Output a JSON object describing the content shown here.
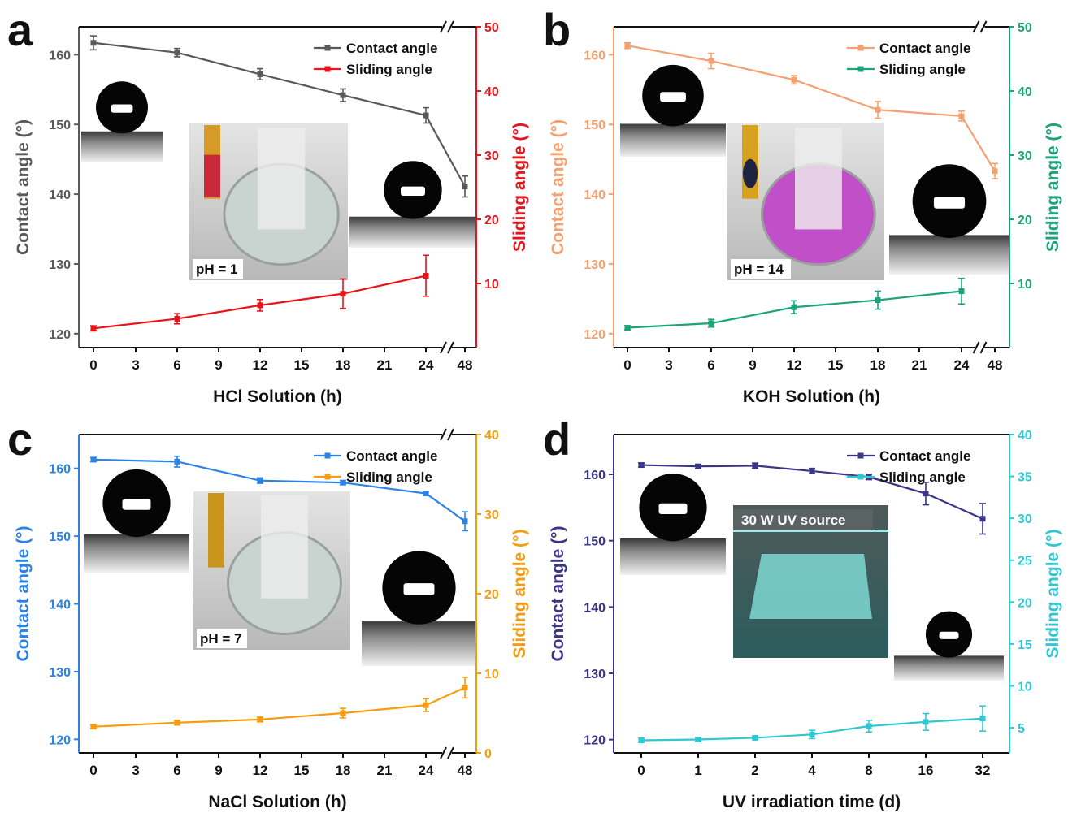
{
  "chart_data": [
    {
      "type": "line",
      "panel_label": "a",
      "xlabel": "HCl Solution (h)",
      "ylabel": "Contact angle (°)",
      "y2label": "Sliding angle (°)",
      "x_tick_labels": [
        "0",
        "3",
        "6",
        "9",
        "12",
        "15",
        "18",
        "21",
        "24",
        "48"
      ],
      "x_break": true,
      "ylim": [
        118,
        164
      ],
      "y_ticks": [
        120,
        130,
        140,
        150,
        160
      ],
      "y2lim": [
        0,
        50
      ],
      "y2_ticks": [
        10,
        20,
        30,
        40,
        50
      ],
      "legend_position": "top-right",
      "inset_label": "pH = 1",
      "series": [
        {
          "name": "Contact angle",
          "axis": "left",
          "color": "#595959",
          "x": [
            "0",
            "6",
            "12",
            "18",
            "24",
            "48"
          ],
          "values": [
            161.7,
            160.3,
            157.2,
            154.2,
            151.3,
            141.1
          ],
          "errors": [
            1.0,
            0.6,
            0.8,
            0.9,
            1.1,
            1.5
          ]
        },
        {
          "name": "Sliding angle",
          "axis": "right",
          "color": "#e8141b",
          "x": [
            "0",
            "6",
            "12",
            "18",
            "24"
          ],
          "values": [
            3.0,
            4.5,
            6.6,
            8.4,
            11.2
          ],
          "errors": [
            0.4,
            0.8,
            0.9,
            2.3,
            3.2
          ]
        }
      ]
    },
    {
      "type": "line",
      "panel_label": "b",
      "xlabel": "KOH Solution (h)",
      "ylabel": "Contact angle (°)",
      "y2label": "Sliding angle (°)",
      "x_tick_labels": [
        "0",
        "3",
        "6",
        "9",
        "12",
        "15",
        "18",
        "21",
        "24",
        "48"
      ],
      "x_break": true,
      "ylim": [
        118,
        164
      ],
      "y_ticks": [
        120,
        130,
        140,
        150,
        160
      ],
      "y2lim": [
        0,
        50
      ],
      "y2_ticks": [
        10,
        20,
        30,
        40,
        50
      ],
      "legend_position": "top-right",
      "inset_label": "pH = 14",
      "series": [
        {
          "name": "Contact angle",
          "axis": "left",
          "color": "#f4a070",
          "x": [
            "0",
            "6",
            "12",
            "18",
            "24",
            "48"
          ],
          "values": [
            161.3,
            159.1,
            156.4,
            152.1,
            151.2,
            143.3
          ],
          "errors": [
            0.4,
            1.1,
            0.6,
            1.2,
            0.7,
            1.1
          ]
        },
        {
          "name": "Sliding angle",
          "axis": "right",
          "color": "#1ca37a",
          "x": [
            "0",
            "6",
            "12",
            "18",
            "24"
          ],
          "values": [
            3.1,
            3.8,
            6.3,
            7.4,
            8.8
          ],
          "errors": [
            0.3,
            0.6,
            1.0,
            1.4,
            2.0
          ]
        }
      ]
    },
    {
      "type": "line",
      "panel_label": "c",
      "xlabel": "NaCl Solution (h)",
      "ylabel": "Contact angle (°)",
      "y2label": "Sliding angle (°)",
      "x_tick_labels": [
        "0",
        "3",
        "6",
        "9",
        "12",
        "15",
        "18",
        "21",
        "24",
        "48"
      ],
      "x_break": true,
      "ylim": [
        118,
        165
      ],
      "y_ticks": [
        120,
        130,
        140,
        150,
        160
      ],
      "y2lim": [
        0,
        40
      ],
      "y2_ticks": [
        0,
        10,
        20,
        30,
        40
      ],
      "legend_position": "top-right",
      "inset_label": "pH = 7",
      "series": [
        {
          "name": "Contact angle",
          "axis": "left",
          "color": "#2b83e5",
          "x": [
            "0",
            "6",
            "12",
            "18",
            "24",
            "48"
          ],
          "values": [
            161.3,
            161.0,
            158.2,
            157.9,
            156.3,
            152.2
          ],
          "errors": [
            0.3,
            0.8,
            0.4,
            0.3,
            0.3,
            1.4
          ]
        },
        {
          "name": "Sliding angle",
          "axis": "right",
          "color": "#f59d0f",
          "x": [
            "0",
            "6",
            "12",
            "18",
            "24",
            "48"
          ],
          "values": [
            3.3,
            3.8,
            4.2,
            5.0,
            6.0,
            8.2
          ],
          "errors": [
            0.2,
            0.3,
            0.3,
            0.6,
            0.8,
            1.3
          ]
        }
      ]
    },
    {
      "type": "line",
      "panel_label": "d",
      "xlabel": "UV irradiation time (d)",
      "ylabel": "Contact angle (°)",
      "y2label": "Sliding angle (°)",
      "x_tick_labels": [
        "0",
        "1",
        "2",
        "4",
        "8",
        "16",
        "32"
      ],
      "x_break": false,
      "ylim": [
        118,
        166
      ],
      "y_ticks": [
        120,
        130,
        140,
        150,
        160
      ],
      "y2lim": [
        2,
        40
      ],
      "y2_ticks": [
        5,
        10,
        15,
        20,
        25,
        30,
        35,
        40
      ],
      "legend_position": "top-right",
      "inset_label": "30 W UV source",
      "series": [
        {
          "name": "Contact angle",
          "axis": "left",
          "color": "#3a3586",
          "x": [
            "0",
            "1",
            "2",
            "4",
            "8",
            "16",
            "32"
          ],
          "values": [
            161.4,
            161.2,
            161.3,
            160.5,
            159.6,
            157.1,
            153.3
          ],
          "errors": [
            0.3,
            0.3,
            0.4,
            0.4,
            0.4,
            1.7,
            2.3
          ]
        },
        {
          "name": "Sliding angle",
          "axis": "right",
          "color": "#2fc8d2",
          "x": [
            "0",
            "1",
            "2",
            "4",
            "8",
            "16",
            "32"
          ],
          "values": [
            3.5,
            3.6,
            3.8,
            4.2,
            5.2,
            5.7,
            6.1
          ],
          "errors": [
            0.2,
            0.2,
            0.2,
            0.5,
            0.7,
            1.0,
            1.5
          ]
        }
      ]
    }
  ]
}
